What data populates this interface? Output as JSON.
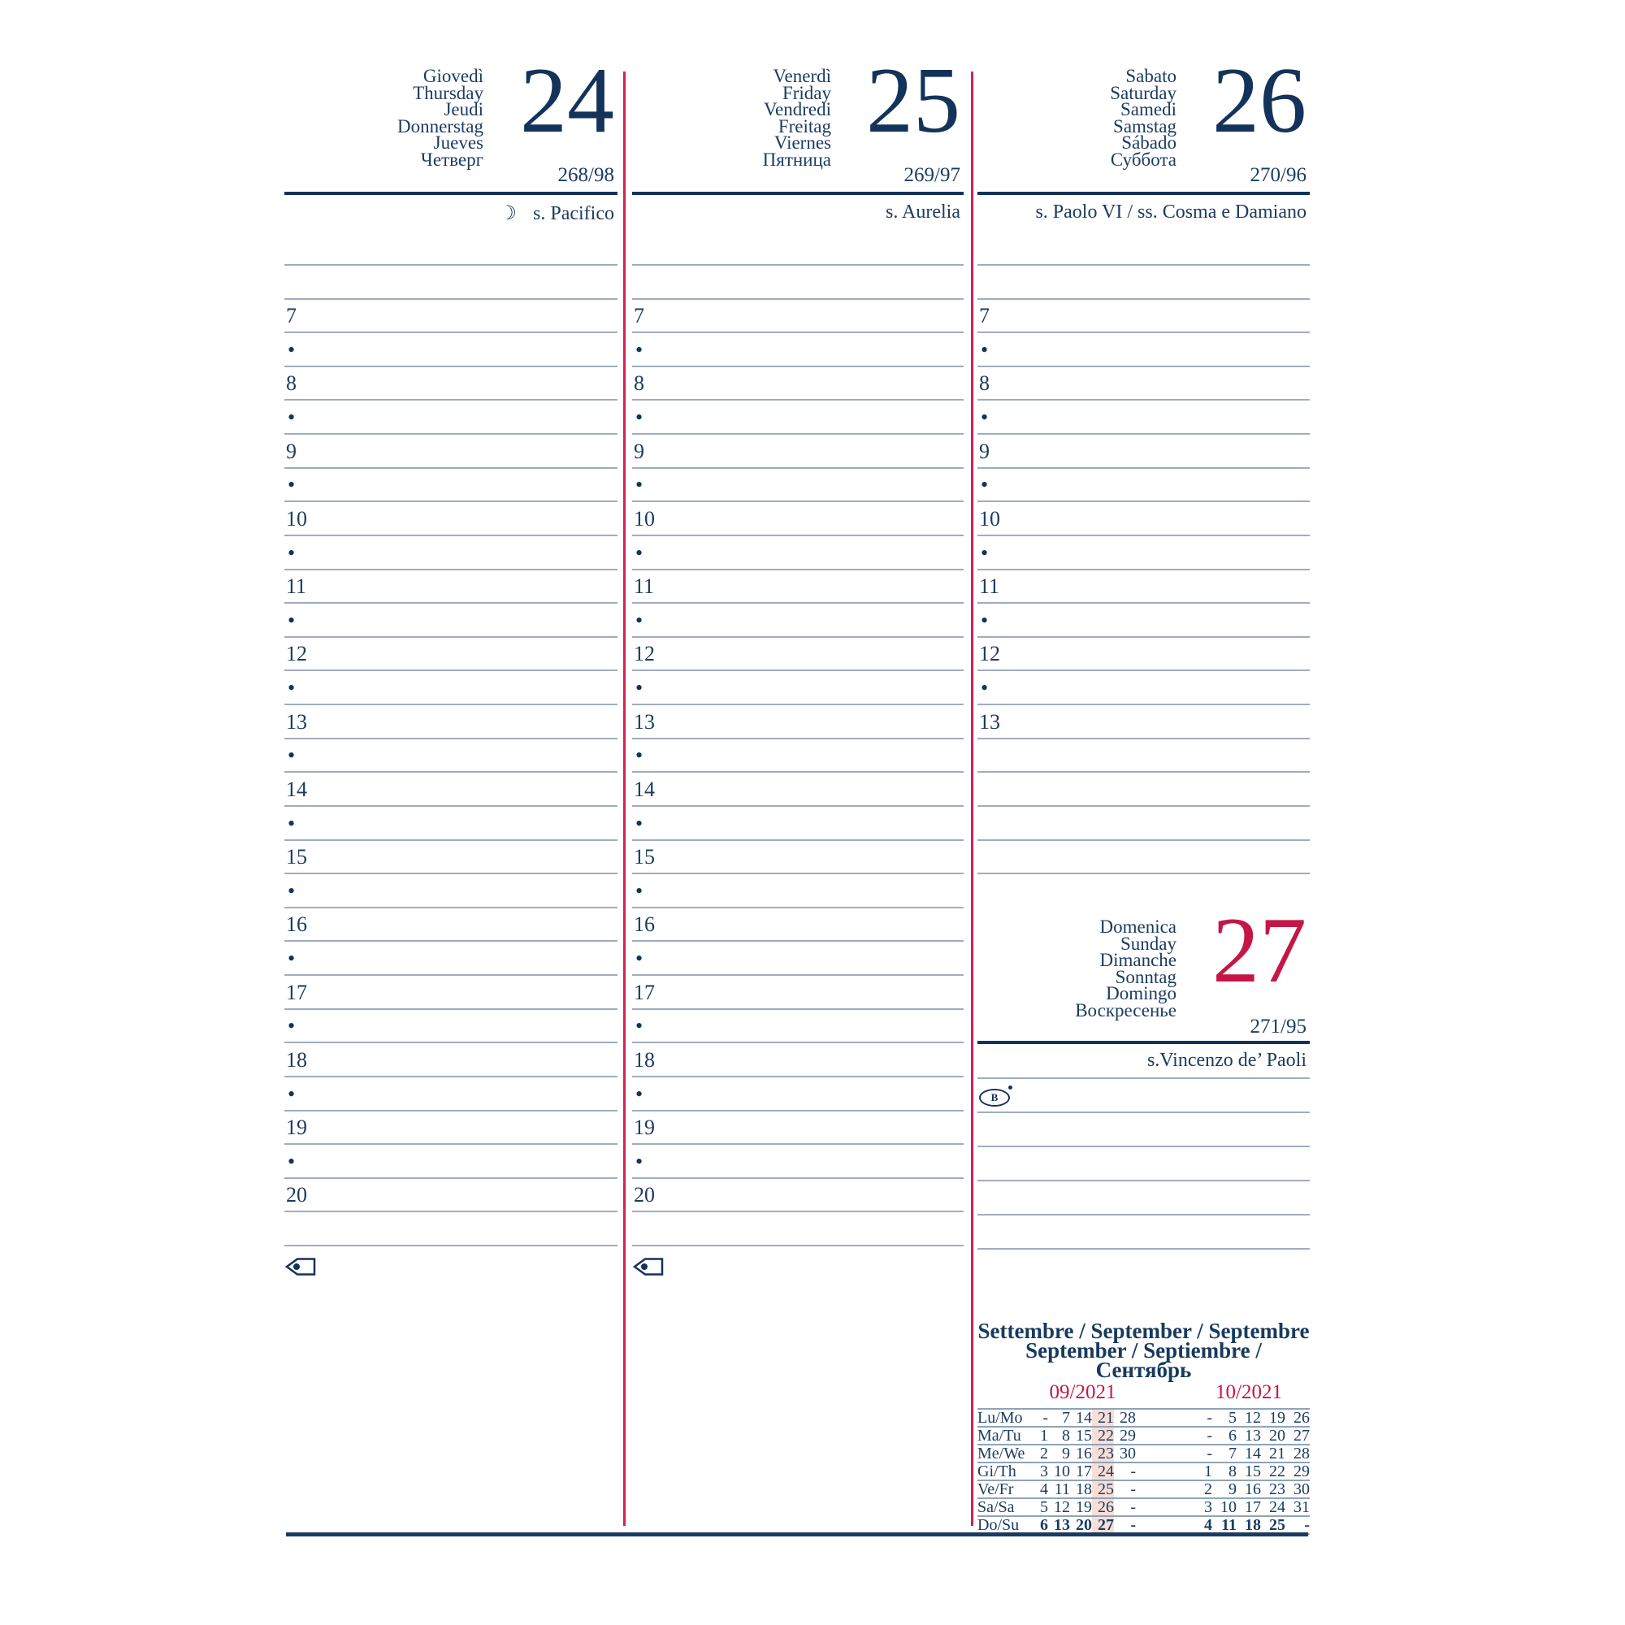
{
  "colors": {
    "navy": "#14335a",
    "text_navy": "#1c3c60",
    "red": "#c41747",
    "red_line": "#d82052",
    "rule_gray": "#9fadc0",
    "calendar_rule": "#8fa3b8",
    "week_highlight": "#f7ded7"
  },
  "schedule": {
    "half_hour_marker": "•"
  },
  "days": [
    {
      "names": [
        "Giovedì",
        "Thursday",
        "Jeudi",
        "Donnerstag",
        "Jueves",
        "Четверг"
      ],
      "number": "24",
      "day_of_year": "268/98",
      "moon_symbol": "☽",
      "saint": "s. Pacifico",
      "hours_start": 7,
      "hours_end": 20
    },
    {
      "names": [
        "Venerdì",
        "Friday",
        "Vendredi",
        "Freitag",
        "Viernes",
        "Пятница"
      ],
      "number": "25",
      "day_of_year": "269/97",
      "saint": "s. Aurelia",
      "hours_start": 7,
      "hours_end": 20
    },
    {
      "names": [
        "Sabato",
        "Saturday",
        "Samedi",
        "Samstag",
        "Sábado",
        "Суббота"
      ],
      "number": "26",
      "day_of_year": "270/96",
      "saint": "s. Paolo VI / ss. Cosma e Damiano",
      "hours_start": 7,
      "hours_end": 13
    }
  ],
  "sunday": {
    "names": [
      "Domenica",
      "Sunday",
      "Dimanche",
      "Sonntag",
      "Domingo",
      "Воскресенье"
    ],
    "number": "27",
    "day_of_year": "271/95",
    "saint": "s.Vincenzo de’ Paoli",
    "badge_letter": "B"
  },
  "mini_calendar": {
    "title_line1": "Settembre / September / Septembre",
    "title_line2": "September / Septiembre / Сентябрь",
    "month_left": "09/2021",
    "month_right": "10/2021",
    "day_labels": [
      "Lu/Mo",
      "Ma/Tu",
      "Me/We",
      "Gi/Th",
      "Ve/Fr",
      "Sa/Sa",
      "Do/Su"
    ],
    "september": [
      [
        "-",
        "7",
        "14",
        "21",
        "28"
      ],
      [
        "1",
        "8",
        "15",
        "22",
        "29"
      ],
      [
        "2",
        "9",
        "16",
        "23",
        "30"
      ],
      [
        "3",
        "10",
        "17",
        "24",
        "-"
      ],
      [
        "4",
        "11",
        "18",
        "25",
        "-"
      ],
      [
        "5",
        "12",
        "19",
        "26",
        "-"
      ],
      [
        "6",
        "13",
        "20",
        "27",
        "-"
      ]
    ],
    "october": [
      [
        "-",
        "5",
        "12",
        "19",
        "26"
      ],
      [
        "-",
        "6",
        "13",
        "20",
        "27"
      ],
      [
        "-",
        "7",
        "14",
        "21",
        "28"
      ],
      [
        "1",
        "8",
        "15",
        "22",
        "29"
      ],
      [
        "2",
        "9",
        "16",
        "23",
        "30"
      ],
      [
        "3",
        "10",
        "17",
        "24",
        "31"
      ],
      [
        "4",
        "11",
        "18",
        "25",
        "-"
      ]
    ],
    "highlight_column_september": 3,
    "bold_row_index": 6
  }
}
